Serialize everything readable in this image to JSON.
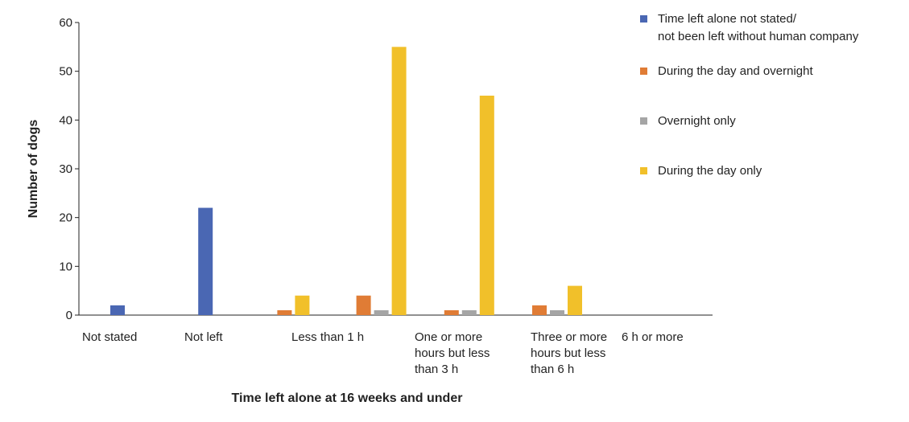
{
  "chart_data": {
    "type": "bar",
    "title": "",
    "xlabel": "Time left alone at 16 weeks and under",
    "ylabel": "Number of dogs",
    "ylim": [
      0,
      60
    ],
    "yticks": [
      0,
      10,
      20,
      30,
      40,
      50,
      60
    ],
    "grid": false,
    "legend_position": "top-right",
    "categories": [
      [
        "Not stated"
      ],
      [
        "Not left"
      ],
      [
        "Less than 1 h"
      ],
      [
        "One or more",
        "hours but less",
        "than 3 h"
      ],
      [
        "Three or more",
        "hours but less",
        "than 6 h"
      ],
      [
        "6 h or more"
      ]
    ],
    "series": [
      {
        "name": "Time left alone not stated/ not been left without human company",
        "legend_lines": [
          "Time left alone not stated/",
          "not been left without human company"
        ],
        "color": "#4a67b3",
        "values": [
          2,
          22,
          0,
          0,
          0,
          0
        ]
      },
      {
        "name": "During the day and overnight",
        "legend_lines": [
          "During the day and overnight"
        ],
        "color": "#e07c35",
        "values": [
          0,
          0,
          1,
          4,
          1,
          2
        ]
      },
      {
        "name": "Overnight only",
        "legend_lines": [
          "Overnight only"
        ],
        "color": "#a5a5a5",
        "values": [
          0,
          0,
          0,
          1,
          1,
          1
        ]
      },
      {
        "name": "During the day only",
        "legend_lines": [
          "During the day only"
        ],
        "color": "#f1c02a",
        "values": [
          0,
          0,
          4,
          55,
          45,
          6
        ]
      }
    ]
  }
}
